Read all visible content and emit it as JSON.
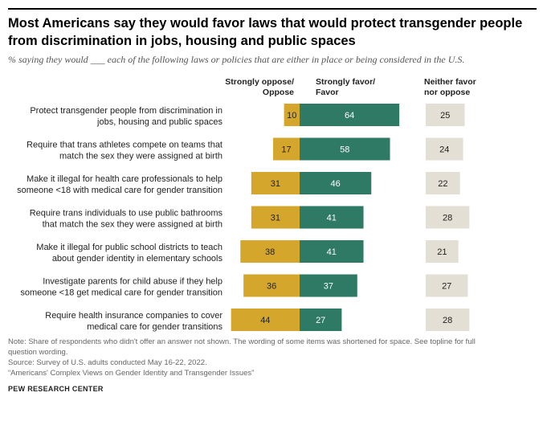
{
  "title": "Most Americans say they would favor laws that would protect transgender people from discrimination in jobs, housing and public spaces",
  "subtitle": "% saying they would ___ each of the following laws or policies that are either in place or being considered in the U.S.",
  "columns": {
    "oppose_line1": "Strongly oppose/",
    "oppose_line2": "Oppose",
    "favor_line1": "Strongly favor/",
    "favor_line2": "Favor",
    "neither_line1": "Neither favor",
    "neither_line2": "nor oppose"
  },
  "colors": {
    "oppose": "#d4a72c",
    "favor": "#2e7a64",
    "neither": "#e3dfd4"
  },
  "chart_data": {
    "type": "bar",
    "orientation": "horizontal diverging",
    "categories": [
      [
        "Protect transgender people from discrimination in",
        "jobs, housing and public spaces"
      ],
      [
        "Require that trans athletes compete on teams that",
        "match the sex they were assigned at birth"
      ],
      [
        "Make it illegal for health care professionals to help",
        "someone <18 with medical care for gender transition"
      ],
      [
        "Require trans individuals to use public bathrooms",
        "that match the sex they were assigned at birth"
      ],
      [
        "Make it illegal for public school districts to teach",
        "about gender identity in elementary schools"
      ],
      [
        "Investigate parents for child abuse if they help",
        "someone <18 get medical care for gender transition"
      ],
      [
        "Require health insurance companies to cover",
        "medical care for gender transitions"
      ]
    ],
    "series": [
      {
        "name": "Strongly oppose/Oppose",
        "values": [
          10,
          17,
          31,
          31,
          38,
          36,
          44
        ]
      },
      {
        "name": "Strongly favor/Favor",
        "values": [
          64,
          58,
          46,
          41,
          41,
          37,
          27
        ]
      },
      {
        "name": "Neither favor nor oppose",
        "values": [
          25,
          24,
          22,
          28,
          21,
          27,
          28
        ]
      }
    ]
  },
  "footer": {
    "note_line1": "Note: Share of respondents who didn't offer an answer not shown. The wording of some items was shortened for space. See topline for full",
    "note_line2": "question wording.",
    "source": "Source: Survey of U.S. adults conducted May 16-22, 2022.",
    "report": "“Americans' Complex Views on Gender Identity and Transgender Issues”",
    "brand": "PEW RESEARCH CENTER"
  }
}
